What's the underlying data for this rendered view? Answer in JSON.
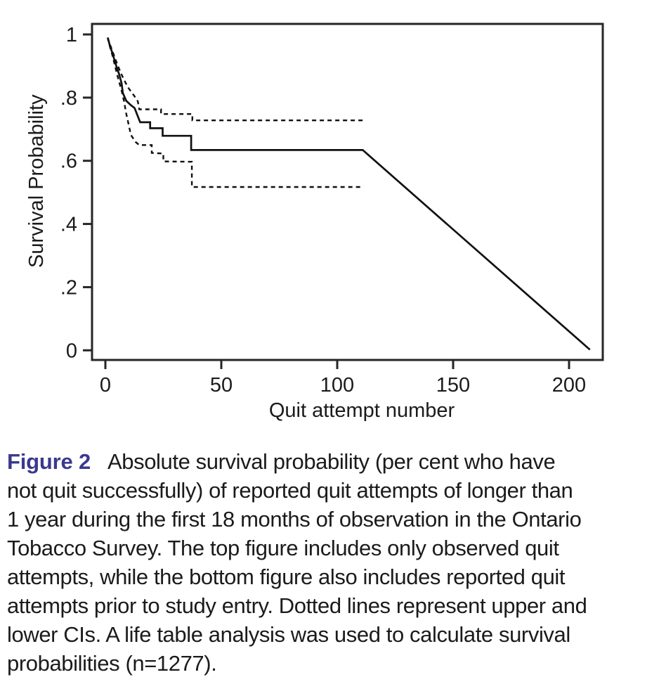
{
  "chart_data": {
    "type": "line",
    "title": "",
    "xlabel": "Quit attempt number",
    "ylabel": "Survival Probability",
    "xlim": [
      0,
      215
    ],
    "ylim": [
      0,
      1.04
    ],
    "grid": false,
    "legend": "none",
    "frame": "box",
    "line_color": "#111111",
    "axis_color": "#262626",
    "xticks": {
      "values": [
        0,
        50,
        100,
        150,
        200
      ],
      "labels": [
        "0",
        "50",
        "100",
        "150",
        "200"
      ]
    },
    "yticks": {
      "values": [
        0,
        0.2,
        0.4,
        0.6,
        0.8,
        1
      ],
      "labels": [
        "0",
        ".2",
        ".4",
        ".6",
        ".8",
        "1"
      ]
    },
    "series": [
      {
        "name": "Survival probability (life table estimate)",
        "style": "solid",
        "points": [
          [
            1,
            0.99
          ],
          [
            2,
            0.963
          ],
          [
            3,
            0.942
          ],
          [
            4,
            0.917
          ],
          [
            5,
            0.893
          ],
          [
            6,
            0.873
          ],
          [
            7,
            0.845
          ],
          [
            7.5,
            0.815
          ],
          [
            9,
            0.79
          ],
          [
            11,
            0.776
          ],
          [
            12.6,
            0.767
          ],
          [
            15,
            0.722
          ],
          [
            19.3,
            0.722
          ],
          [
            19.3,
            0.703
          ],
          [
            24.7,
            0.703
          ],
          [
            24.7,
            0.679
          ],
          [
            37,
            0.679
          ],
          [
            37,
            0.634
          ],
          [
            111,
            0.634
          ],
          [
            209,
            0.002
          ]
        ]
      },
      {
        "name": "Upper CI",
        "style": "dashed",
        "points": [
          [
            1,
            0.99
          ],
          [
            2,
            0.968
          ],
          [
            3,
            0.948
          ],
          [
            4,
            0.928
          ],
          [
            5,
            0.908
          ],
          [
            6,
            0.89
          ],
          [
            7,
            0.873
          ],
          [
            8,
            0.857
          ],
          [
            9,
            0.843
          ],
          [
            10,
            0.83
          ],
          [
            11,
            0.82
          ],
          [
            12,
            0.81
          ],
          [
            13,
            0.8
          ],
          [
            14,
            0.788
          ],
          [
            14.6,
            0.763
          ],
          [
            24,
            0.763
          ],
          [
            24,
            0.748
          ],
          [
            37.5,
            0.748
          ],
          [
            37.5,
            0.728
          ],
          [
            111,
            0.728
          ]
        ]
      },
      {
        "name": "Lower CI",
        "style": "dashed",
        "points": [
          [
            1,
            0.99
          ],
          [
            2,
            0.96
          ],
          [
            3,
            0.935
          ],
          [
            4,
            0.905
          ],
          [
            5,
            0.875
          ],
          [
            6,
            0.848
          ],
          [
            7,
            0.822
          ],
          [
            8,
            0.79
          ],
          [
            9,
            0.749
          ],
          [
            10,
            0.716
          ],
          [
            11,
            0.682
          ],
          [
            13,
            0.66
          ],
          [
            14.6,
            0.65
          ],
          [
            20,
            0.65
          ],
          [
            20,
            0.625
          ],
          [
            25,
            0.623
          ],
          [
            25,
            0.598
          ],
          [
            37.3,
            0.597
          ],
          [
            37.3,
            0.517
          ],
          [
            110,
            0.517
          ]
        ]
      }
    ]
  },
  "caption": {
    "label": "Figure 2",
    "label_color": "#3b398e",
    "lines": [
      "Absolute survival probability (per cent who have",
      "not quit successfully) of reported quit attempts of longer than",
      "1 year during the first 18 months of observation in the Ontario",
      "Tobacco Survey. The top figure includes only observed quit",
      "attempts, while the bottom figure also includes reported quit",
      "attempts prior to study entry. Dotted lines represent upper and",
      "lower CIs. A life table analysis was used to calculate survival",
      "probabilities (n=1277)."
    ]
  }
}
